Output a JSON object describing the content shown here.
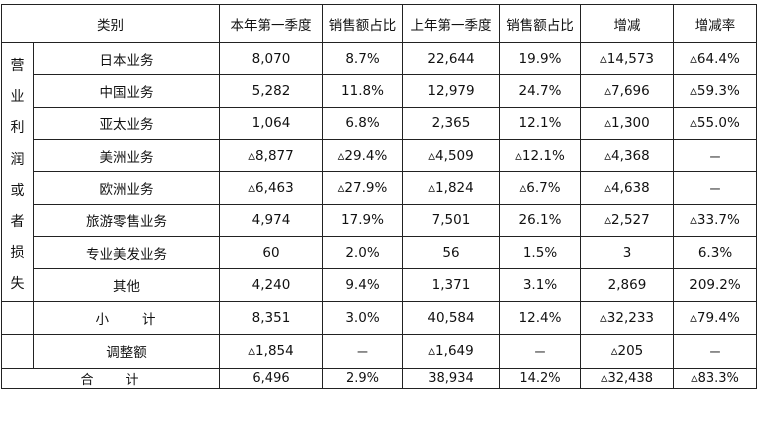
{
  "headers": {
    "category": "类别",
    "cur_q1": "本年第一季度",
    "cur_share": "销售额占比",
    "prev_q1": "上年第一季度",
    "prev_share": "销售额占比",
    "change": "增减",
    "change_rate": "增减率"
  },
  "section_label_chars": [
    "营",
    "业",
    "利",
    "润",
    "或",
    "者",
    "损",
    "失"
  ],
  "rows": [
    {
      "name": "日本业务",
      "cur": "8,070",
      "cur_share": "8.7%",
      "prev": "22,644",
      "prev_share": "19.9%",
      "change": "▵14,573",
      "rate": "▵64.4%"
    },
    {
      "name": "中国业务",
      "cur": "5,282",
      "cur_share": "11.8%",
      "prev": "12,979",
      "prev_share": "24.7%",
      "change": "▵7,696",
      "rate": "▵59.3%"
    },
    {
      "name": "亚太业务",
      "cur": "1,064",
      "cur_share": "6.8%",
      "prev": "2,365",
      "prev_share": "12.1%",
      "change": "▵1,300",
      "rate": "▵55.0%"
    },
    {
      "name": "美洲业务",
      "cur": "▵8,877",
      "cur_share": "▵29.4%",
      "prev": "▵4,509",
      "prev_share": "▵12.1%",
      "change": "▵4,368",
      "rate": "－"
    },
    {
      "name": "欧洲业务",
      "cur": "▵6,463",
      "cur_share": "▵27.9%",
      "prev": "▵1,824",
      "prev_share": "▵6.7%",
      "change": "▵4,638",
      "rate": "－"
    },
    {
      "name": "旅游零售业务",
      "cur": "4,974",
      "cur_share": "17.9%",
      "prev": "7,501",
      "prev_share": "26.1%",
      "change": "▵2,527",
      "rate": "▵33.7%"
    },
    {
      "name": "专业美发业务",
      "cur": "60",
      "cur_share": "2.0%",
      "prev": "56",
      "prev_share": "1.5%",
      "change": "3",
      "rate": "6.3%"
    },
    {
      "name": "其他",
      "cur": "4,240",
      "cur_share": "9.4%",
      "prev": "1,371",
      "prev_share": "3.1%",
      "change": "2,869",
      "rate": "209.2%"
    }
  ],
  "subtotal": {
    "name": "小　　计",
    "cur": "8,351",
    "cur_share": "3.0%",
    "prev": "40,584",
    "prev_share": "12.4%",
    "change": "▵32,233",
    "rate": "▵79.4%"
  },
  "adjustment": {
    "name": "调整额",
    "cur": "▵1,854",
    "cur_share": "－",
    "prev": "▵1,649",
    "prev_share": "－",
    "change": "▵205",
    "rate": "－"
  },
  "total": {
    "name": "合　　计",
    "cur": "6,496",
    "cur_share": "2.9%",
    "prev": "38,934",
    "prev_share": "14.2%",
    "change": "▵32,438",
    "rate": "▵83.3%"
  }
}
